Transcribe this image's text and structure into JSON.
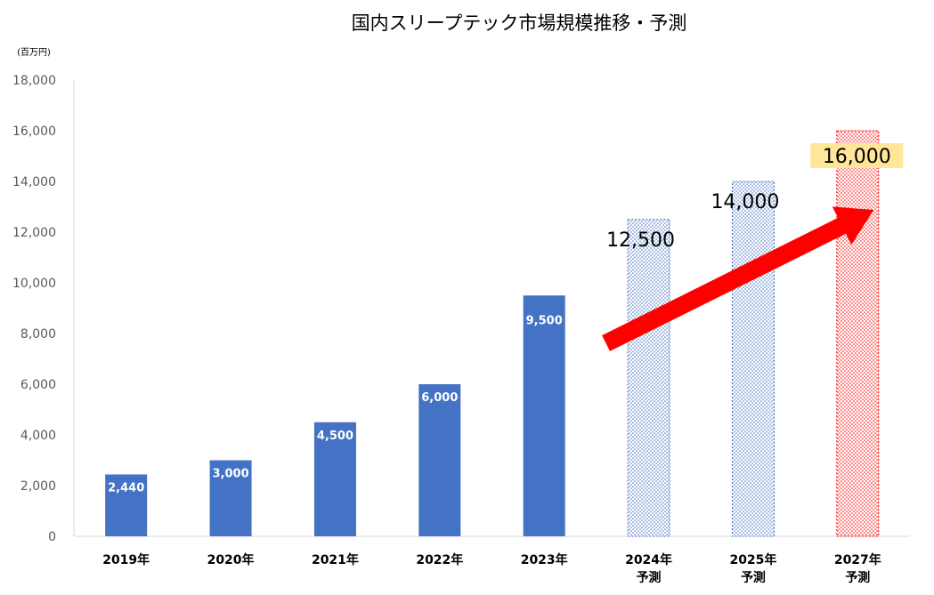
{
  "chart_data": {
    "type": "bar",
    "title": "国内スリープテック市場規模推移・予測",
    "unit_label": "(百万円)",
    "categories": [
      {
        "year": "2019年",
        "note": ""
      },
      {
        "year": "2020年",
        "note": ""
      },
      {
        "year": "2021年",
        "note": ""
      },
      {
        "year": "2022年",
        "note": ""
      },
      {
        "year": "2023年",
        "note": ""
      },
      {
        "year": "2024年",
        "note": "予測"
      },
      {
        "year": "2025年",
        "note": "予測"
      },
      {
        "year": "2027年",
        "note": "予測"
      }
    ],
    "values": [
      2440,
      3000,
      4500,
      6000,
      9500,
      12500,
      14000,
      16000
    ],
    "value_labels": [
      "2,440",
      "3,000",
      "4,500",
      "6,000",
      "9,500",
      "12,500",
      "14,000",
      "16,000"
    ],
    "bar_styles": [
      "solid",
      "solid",
      "solid",
      "solid",
      "solid",
      "dotted",
      "dotted",
      "dotted-highlight"
    ],
    "yticks": [
      "0",
      "2,000",
      "4,000",
      "6,000",
      "8,000",
      "10,000",
      "12,000",
      "14,000",
      "16,000",
      "18,000"
    ],
    "ylim": [
      0,
      18000
    ],
    "grid": false,
    "legend": "none",
    "annotations": [
      {
        "type": "arrow",
        "from_category": 5,
        "to_category": 7,
        "color": "#ff0000"
      }
    ],
    "colors": {
      "actual_bar": "#4472c4",
      "forecast_bar": "#4472c4",
      "highlight_bar": "#ff0000",
      "highlight_label_bg": "#ffe699",
      "arrow": "#ff0000",
      "axis": "#d9d9d9",
      "text": "#000000",
      "tick_text": "#595959"
    }
  }
}
